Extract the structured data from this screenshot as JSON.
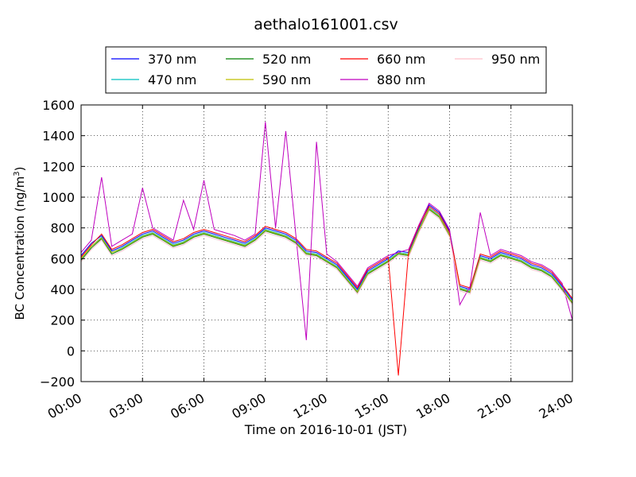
{
  "chart_data": {
    "type": "line",
    "title": "aethalo161001.csv",
    "xlabel": "Time on 2016-10-01 (JST)",
    "ylabel_main": "BC Concentration (ng/m",
    "ylabel_sup": "3",
    "ylabel_close": ")",
    "xlim": [
      0,
      24
    ],
    "ylim": [
      -200,
      1600
    ],
    "grid": true,
    "legend_position": "top",
    "x_ticks": [
      {
        "value": 0,
        "label": "00:00"
      },
      {
        "value": 3,
        "label": "03:00"
      },
      {
        "value": 6,
        "label": "06:00"
      },
      {
        "value": 9,
        "label": "09:00"
      },
      {
        "value": 12,
        "label": "12:00"
      },
      {
        "value": 15,
        "label": "15:00"
      },
      {
        "value": 18,
        "label": "18:00"
      },
      {
        "value": 21,
        "label": "21:00"
      },
      {
        "value": 24,
        "label": "24:00"
      }
    ],
    "y_ticks": [
      {
        "value": -200,
        "label": "−200"
      },
      {
        "value": 0,
        "label": "0"
      },
      {
        "value": 200,
        "label": "200"
      },
      {
        "value": 400,
        "label": "400"
      },
      {
        "value": 600,
        "label": "600"
      },
      {
        "value": 800,
        "label": "800"
      },
      {
        "value": 1000,
        "label": "1000"
      },
      {
        "value": 1200,
        "label": "1200"
      },
      {
        "value": 1400,
        "label": "1400"
      },
      {
        "value": 1600,
        "label": "1600"
      }
    ],
    "x": [
      0,
      0.5,
      1,
      1.5,
      2,
      2.5,
      3,
      3.5,
      4,
      4.5,
      5,
      5.5,
      6,
      6.5,
      7,
      7.5,
      8,
      8.5,
      9,
      9.5,
      10,
      10.5,
      11,
      11.5,
      12,
      12.5,
      13,
      13.5,
      14,
      14.5,
      15,
      15.5,
      16,
      16.5,
      17,
      17.5,
      18,
      18.5,
      19,
      19.5,
      20,
      20.5,
      21,
      21.5,
      22,
      22.5,
      23,
      23.5,
      24
    ],
    "series": [
      {
        "name": "370 nm",
        "color": "#0000ff",
        "values": [
          620,
          700,
          750,
          650,
          680,
          720,
          760,
          780,
          740,
          700,
          720,
          760,
          780,
          760,
          740,
          720,
          700,
          740,
          800,
          780,
          760,
          720,
          650,
          640,
          600,
          560,
          480,
          400,
          520,
          560,
          600,
          650,
          640,
          800,
          950,
          900,
          780,
          420,
          400,
          620,
          600,
          640,
          620,
          600,
          560,
          540,
          500,
          420,
          330
        ]
      },
      {
        "name": "470 nm",
        "color": "#00bfbf",
        "values": [
          600,
          680,
          740,
          640,
          670,
          710,
          750,
          770,
          730,
          690,
          710,
          750,
          770,
          750,
          730,
          710,
          690,
          730,
          790,
          770,
          750,
          710,
          640,
          630,
          590,
          550,
          470,
          390,
          510,
          550,
          590,
          640,
          630,
          790,
          930,
          880,
          760,
          410,
          390,
          610,
          590,
          630,
          610,
          590,
          550,
          530,
          490,
          410,
          320
        ]
      },
      {
        "name": "520 nm",
        "color": "#008000",
        "values": [
          590,
          670,
          730,
          630,
          660,
          700,
          740,
          760,
          720,
          680,
          700,
          740,
          760,
          740,
          720,
          700,
          680,
          720,
          780,
          760,
          740,
          700,
          630,
          620,
          580,
          540,
          460,
          380,
          500,
          540,
          580,
          630,
          620,
          780,
          920,
          870,
          750,
          400,
          380,
          600,
          580,
          620,
          600,
          580,
          540,
          520,
          480,
          400,
          310
        ]
      },
      {
        "name": "590 nm",
        "color": "#bfbf00",
        "values": [
          600,
          680,
          735,
          640,
          665,
          705,
          745,
          765,
          725,
          685,
          705,
          745,
          765,
          745,
          725,
          705,
          685,
          725,
          785,
          765,
          745,
          705,
          635,
          625,
          585,
          545,
          465,
          385,
          505,
          545,
          585,
          635,
          625,
          785,
          925,
          875,
          755,
          405,
          385,
          605,
          585,
          625,
          605,
          585,
          545,
          525,
          485,
          405,
          315
        ]
      },
      {
        "name": "660 nm",
        "color": "#ff0000",
        "values": [
          610,
          690,
          760,
          660,
          690,
          730,
          770,
          790,
          750,
          710,
          730,
          770,
          790,
          770,
          750,
          730,
          710,
          750,
          810,
          790,
          770,
          730,
          660,
          650,
          610,
          570,
          490,
          410,
          530,
          570,
          610,
          -160,
          650,
          810,
          940,
          890,
          770,
          430,
          410,
          630,
          610,
          650,
          630,
          610,
          570,
          550,
          510,
          430,
          340
        ]
      },
      {
        "name": "880 nm",
        "color": "#bf00bf",
        "values": [
          640,
          720,
          1130,
          680,
          720,
          760,
          1060,
          800,
          760,
          720,
          980,
          790,
          1110,
          790,
          770,
          750,
          720,
          760,
          1490,
          800,
          1430,
          740,
          70,
          1360,
          630,
          580,
          500,
          420,
          540,
          580,
          620,
          640,
          660,
          820,
          960,
          910,
          790,
          300,
          420,
          900,
          620,
          660,
          640,
          620,
          580,
          560,
          520,
          440,
          200
        ]
      },
      {
        "name": "950 nm",
        "color": "#ffc0cb",
        "values": [
          580,
          660,
          720,
          620,
          650,
          690,
          730,
          750,
          710,
          670,
          690,
          730,
          750,
          730,
          710,
          690,
          670,
          710,
          770,
          750,
          730,
          690,
          620,
          610,
          570,
          530,
          450,
          370,
          490,
          530,
          570,
          620,
          610,
          770,
          910,
          860,
          740,
          390,
          370,
          590,
          570,
          610,
          590,
          570,
          530,
          510,
          470,
          390,
          300
        ]
      }
    ]
  }
}
